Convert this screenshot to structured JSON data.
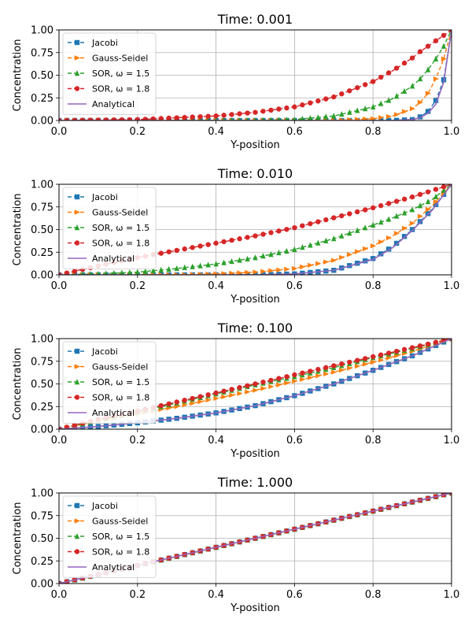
{
  "chart_data": [
    {
      "type": "line",
      "title": "Time: 0.001",
      "xlabel": "Y-position",
      "ylabel": "Concentration",
      "xlim": [
        0,
        1
      ],
      "ylim": [
        0,
        1
      ],
      "xticks": [
        "0.0",
        "0.2",
        "0.4",
        "0.6",
        "0.8",
        "1.0"
      ],
      "yticks": [
        "0.00",
        "0.25",
        "0.50",
        "0.75",
        "1.00"
      ],
      "grid": true,
      "legend_position": "upper-left",
      "x": [
        0.0,
        0.1,
        0.2,
        0.3,
        0.4,
        0.5,
        0.6,
        0.7,
        0.8,
        0.85,
        0.9,
        0.92,
        0.94,
        0.96,
        0.98,
        1.0
      ],
      "series": [
        {
          "name": "Jacobi",
          "color": "#1f77b4",
          "marker": "square",
          "style": "dashed",
          "values": [
            0,
            0,
            0,
            0,
            0,
            0,
            0,
            0,
            0,
            0.0,
            0.01,
            0.04,
            0.1,
            0.22,
            0.45,
            1.0
          ]
        },
        {
          "name": "Gauss-Seidel",
          "color": "#ff7f0e",
          "marker": "triangle-right",
          "style": "dashed",
          "values": [
            0,
            0,
            0,
            0,
            0,
            0,
            0,
            0,
            0.02,
            0.05,
            0.13,
            0.2,
            0.3,
            0.46,
            0.68,
            1.0
          ]
        },
        {
          "name": "SOR, ω = 1.5",
          "color": "#2ca02c",
          "marker": "triangle-up",
          "style": "dashed",
          "values": [
            0,
            0,
            0,
            0,
            0,
            0,
            0.01,
            0.05,
            0.15,
            0.24,
            0.38,
            0.46,
            0.56,
            0.68,
            0.82,
            1.0
          ]
        },
        {
          "name": "SOR, ω = 1.8",
          "color": "#d62728",
          "marker": "circle",
          "style": "dashed",
          "values": [
            0,
            0.005,
            0.01,
            0.03,
            0.05,
            0.09,
            0.15,
            0.26,
            0.43,
            0.55,
            0.69,
            0.76,
            0.82,
            0.88,
            0.94,
            1.0
          ]
        },
        {
          "name": "Analytical",
          "color": "#9467bd",
          "marker": "none",
          "style": "solid",
          "values": [
            0,
            0,
            0,
            0,
            0,
            0,
            0,
            0,
            0,
            0.0,
            0.01,
            0.03,
            0.08,
            0.18,
            0.42,
            1.0
          ]
        }
      ]
    },
    {
      "type": "line",
      "title": "Time: 0.010",
      "xlabel": "Y-position",
      "ylabel": "Concentration",
      "xlim": [
        0,
        1
      ],
      "ylim": [
        0,
        1
      ],
      "xticks": [
        "0.0",
        "0.2",
        "0.4",
        "0.6",
        "0.8",
        "1.0"
      ],
      "yticks": [
        "0.00",
        "0.25",
        "0.50",
        "0.75",
        "1.00"
      ],
      "grid": true,
      "legend_position": "upper-left",
      "x": [
        0.0,
        0.1,
        0.2,
        0.3,
        0.4,
        0.5,
        0.6,
        0.7,
        0.8,
        0.85,
        0.9,
        0.95,
        1.0
      ],
      "series": [
        {
          "name": "Jacobi",
          "color": "#1f77b4",
          "marker": "square",
          "style": "dashed",
          "values": [
            0,
            0,
            0,
            0,
            0,
            0,
            0.01,
            0.05,
            0.18,
            0.31,
            0.5,
            0.72,
            1.0
          ]
        },
        {
          "name": "Gauss-Seidel",
          "color": "#ff7f0e",
          "marker": "triangle-right",
          "style": "dashed",
          "values": [
            0,
            0,
            0,
            0,
            0.01,
            0.03,
            0.07,
            0.16,
            0.32,
            0.43,
            0.57,
            0.76,
            1.0
          ]
        },
        {
          "name": "SOR, ω = 1.5",
          "color": "#2ca02c",
          "marker": "triangle-up",
          "style": "dashed",
          "values": [
            0,
            0.01,
            0.03,
            0.07,
            0.12,
            0.19,
            0.28,
            0.4,
            0.55,
            0.63,
            0.72,
            0.83,
            1.0
          ]
        },
        {
          "name": "SOR, ω = 1.8",
          "color": "#d62728",
          "marker": "circle",
          "style": "dashed",
          "values": [
            0,
            0.1,
            0.19,
            0.27,
            0.35,
            0.43,
            0.52,
            0.63,
            0.74,
            0.8,
            0.86,
            0.93,
            1.0
          ]
        },
        {
          "name": "Analytical",
          "color": "#9467bd",
          "marker": "none",
          "style": "solid",
          "values": [
            0,
            0,
            0,
            0,
            0,
            0,
            0.01,
            0.05,
            0.17,
            0.3,
            0.49,
            0.71,
            1.0
          ]
        }
      ]
    },
    {
      "type": "line",
      "title": "Time: 0.100",
      "xlabel": "Y-position",
      "ylabel": "Concentration",
      "xlim": [
        0,
        1
      ],
      "ylim": [
        0,
        1
      ],
      "xticks": [
        "0.0",
        "0.2",
        "0.4",
        "0.6",
        "0.8",
        "1.0"
      ],
      "yticks": [
        "0.00",
        "0.25",
        "0.50",
        "0.75",
        "1.00"
      ],
      "grid": true,
      "legend_position": "upper-left",
      "x": [
        0.0,
        0.1,
        0.2,
        0.3,
        0.4,
        0.5,
        0.6,
        0.7,
        0.8,
        0.9,
        1.0
      ],
      "series": [
        {
          "name": "Jacobi",
          "color": "#1f77b4",
          "marker": "square",
          "style": "dashed",
          "values": [
            0,
            0.03,
            0.07,
            0.12,
            0.18,
            0.26,
            0.37,
            0.5,
            0.65,
            0.81,
            1.0
          ]
        },
        {
          "name": "Gauss-Seidel",
          "color": "#ff7f0e",
          "marker": "triangle-right",
          "style": "dashed",
          "values": [
            0,
            0.09,
            0.17,
            0.25,
            0.34,
            0.43,
            0.53,
            0.63,
            0.74,
            0.86,
            1.0
          ]
        },
        {
          "name": "SOR, ω = 1.5",
          "color": "#2ca02c",
          "marker": "triangle-up",
          "style": "dashed",
          "values": [
            0,
            0.1,
            0.19,
            0.29,
            0.39,
            0.49,
            0.58,
            0.68,
            0.79,
            0.89,
            1.0
          ]
        },
        {
          "name": "SOR, ω = 1.8",
          "color": "#d62728",
          "marker": "circle",
          "style": "dashed",
          "values": [
            0,
            0.11,
            0.2,
            0.3,
            0.4,
            0.5,
            0.6,
            0.7,
            0.8,
            0.9,
            1.0
          ]
        },
        {
          "name": "Analytical",
          "color": "#9467bd",
          "marker": "none",
          "style": "solid",
          "values": [
            0,
            0.03,
            0.07,
            0.12,
            0.18,
            0.26,
            0.37,
            0.5,
            0.65,
            0.81,
            1.0
          ]
        }
      ]
    },
    {
      "type": "line",
      "title": "Time: 1.000",
      "xlabel": "Y-position",
      "ylabel": "Concentration",
      "xlim": [
        0,
        1
      ],
      "ylim": [
        0,
        1
      ],
      "xticks": [
        "0.0",
        "0.2",
        "0.4",
        "0.6",
        "0.8",
        "1.0"
      ],
      "yticks": [
        "0.00",
        "0.25",
        "0.50",
        "0.75",
        "1.00"
      ],
      "grid": true,
      "legend_position": "upper-left",
      "x": [
        0.0,
        0.2,
        0.4,
        0.6,
        0.8,
        1.0
      ],
      "series": [
        {
          "name": "Jacobi",
          "color": "#1f77b4",
          "marker": "square",
          "style": "dashed",
          "values": [
            0,
            0.2,
            0.4,
            0.6,
            0.8,
            1.0
          ]
        },
        {
          "name": "Gauss-Seidel",
          "color": "#ff7f0e",
          "marker": "triangle-right",
          "style": "dashed",
          "values": [
            0,
            0.2,
            0.4,
            0.6,
            0.8,
            1.0
          ]
        },
        {
          "name": "SOR, ω = 1.5",
          "color": "#2ca02c",
          "marker": "triangle-up",
          "style": "dashed",
          "values": [
            0,
            0.2,
            0.4,
            0.6,
            0.8,
            1.0
          ]
        },
        {
          "name": "SOR, ω = 1.8",
          "color": "#d62728",
          "marker": "circle",
          "style": "dashed",
          "values": [
            0,
            0.2,
            0.4,
            0.6,
            0.8,
            1.0
          ]
        },
        {
          "name": "Analytical",
          "color": "#9467bd",
          "marker": "none",
          "style": "solid",
          "values": [
            0,
            0.2,
            0.4,
            0.6,
            0.8,
            1.0
          ]
        }
      ]
    }
  ]
}
